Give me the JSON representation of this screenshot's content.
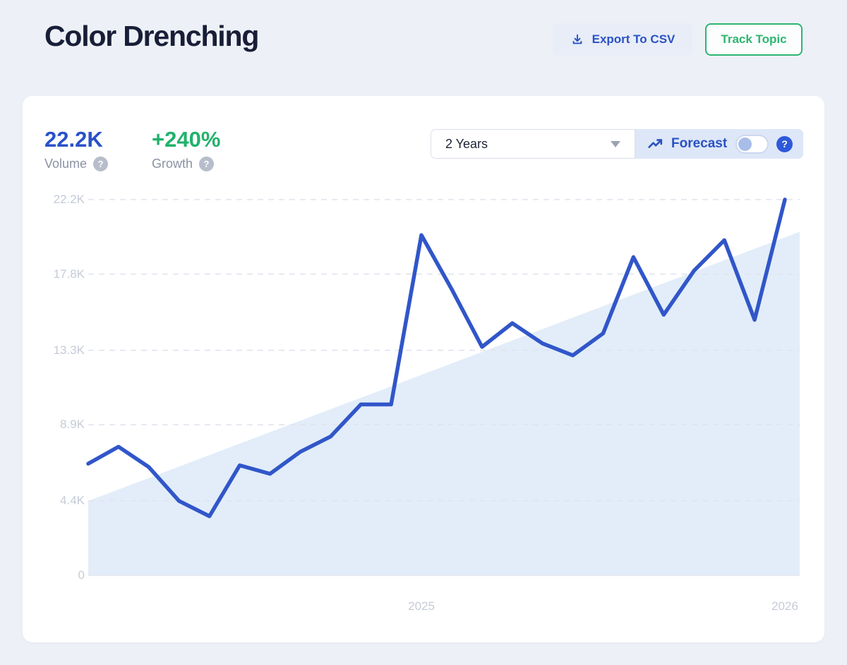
{
  "header": {
    "title": "Color Drenching",
    "export_button": {
      "label": "Export To CSV"
    },
    "track_button": {
      "label": "Track Topic"
    }
  },
  "stats": {
    "volume": {
      "value": "22.2K",
      "label": "Volume",
      "help_glyph": "?"
    },
    "growth": {
      "value": "+240%",
      "label": "Growth",
      "help_glyph": "?"
    }
  },
  "controls": {
    "range_dropdown": {
      "value": "2 Years"
    },
    "forecast": {
      "label": "Forecast",
      "toggle_on": false,
      "help_glyph": "?"
    }
  },
  "colors": {
    "accent_blue": "#2a52c3",
    "stat_blue": "#2a52c8",
    "growth_green": "#21b26c",
    "track_green": "#2eb571",
    "line_blue": "#3156c9",
    "area_fill": "#e2edf9",
    "grid_gray": "#e0e4ee",
    "axis_gray": "#e4e7ee",
    "tick_text": "#c5cbd8"
  },
  "chart_data": {
    "type": "line",
    "description": "Monthly search volume line with linear trend area, forecast off",
    "values": [
      6600,
      7600,
      6400,
      4400,
      3500,
      6500,
      6000,
      7300,
      8200,
      10100,
      10100,
      20100,
      16900,
      13500,
      14900,
      13700,
      13000,
      14300,
      18800,
      15400,
      18000,
      19800,
      15100,
      22200
    ],
    "x_tick_labels": [
      {
        "label": "2025",
        "index": 11
      },
      {
        "label": "2026",
        "index": 23
      }
    ],
    "y_ticks": [
      {
        "label": "22.2K",
        "value": 22200
      },
      {
        "label": "17.8K",
        "value": 17800
      },
      {
        "label": "13.3K",
        "value": 13300
      },
      {
        "label": "8.9K",
        "value": 8900
      },
      {
        "label": "4.4K",
        "value": 4400
      },
      {
        "label": "0",
        "value": 0
      }
    ],
    "ylim": [
      0,
      22200
    ],
    "grid": "dashed-horizontal",
    "legend": "none",
    "trend_area": {
      "start_value": 4400,
      "end_value": 20300
    }
  }
}
